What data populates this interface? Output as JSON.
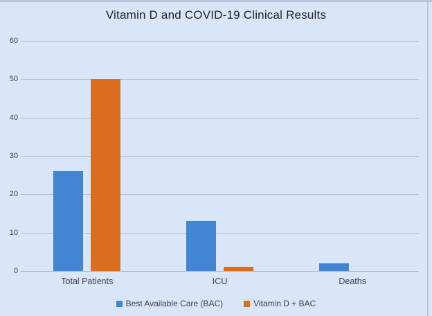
{
  "chart_data": {
    "type": "bar",
    "title": "Vitamin D and COVID-19 Clinical Results",
    "categories": [
      "Total Patients",
      "ICU",
      "Deaths"
    ],
    "series": [
      {
        "name": "Best Available Care (BAC)",
        "color": "#4285d2",
        "values": [
          26,
          13,
          2
        ]
      },
      {
        "name": "Vitamin D + BAC",
        "color": "#d96e1e",
        "values": [
          50,
          1,
          0
        ]
      }
    ],
    "xlabel": "",
    "ylabel": "",
    "ylim": [
      0,
      60
    ],
    "yticks": [
      0,
      10,
      20,
      30,
      40,
      50,
      60
    ],
    "grid": true,
    "legend_position": "bottom",
    "plot_background": "#d9e6fa",
    "gridline_color": "#b4bbc9",
    "text_color": "#3d3d40"
  }
}
